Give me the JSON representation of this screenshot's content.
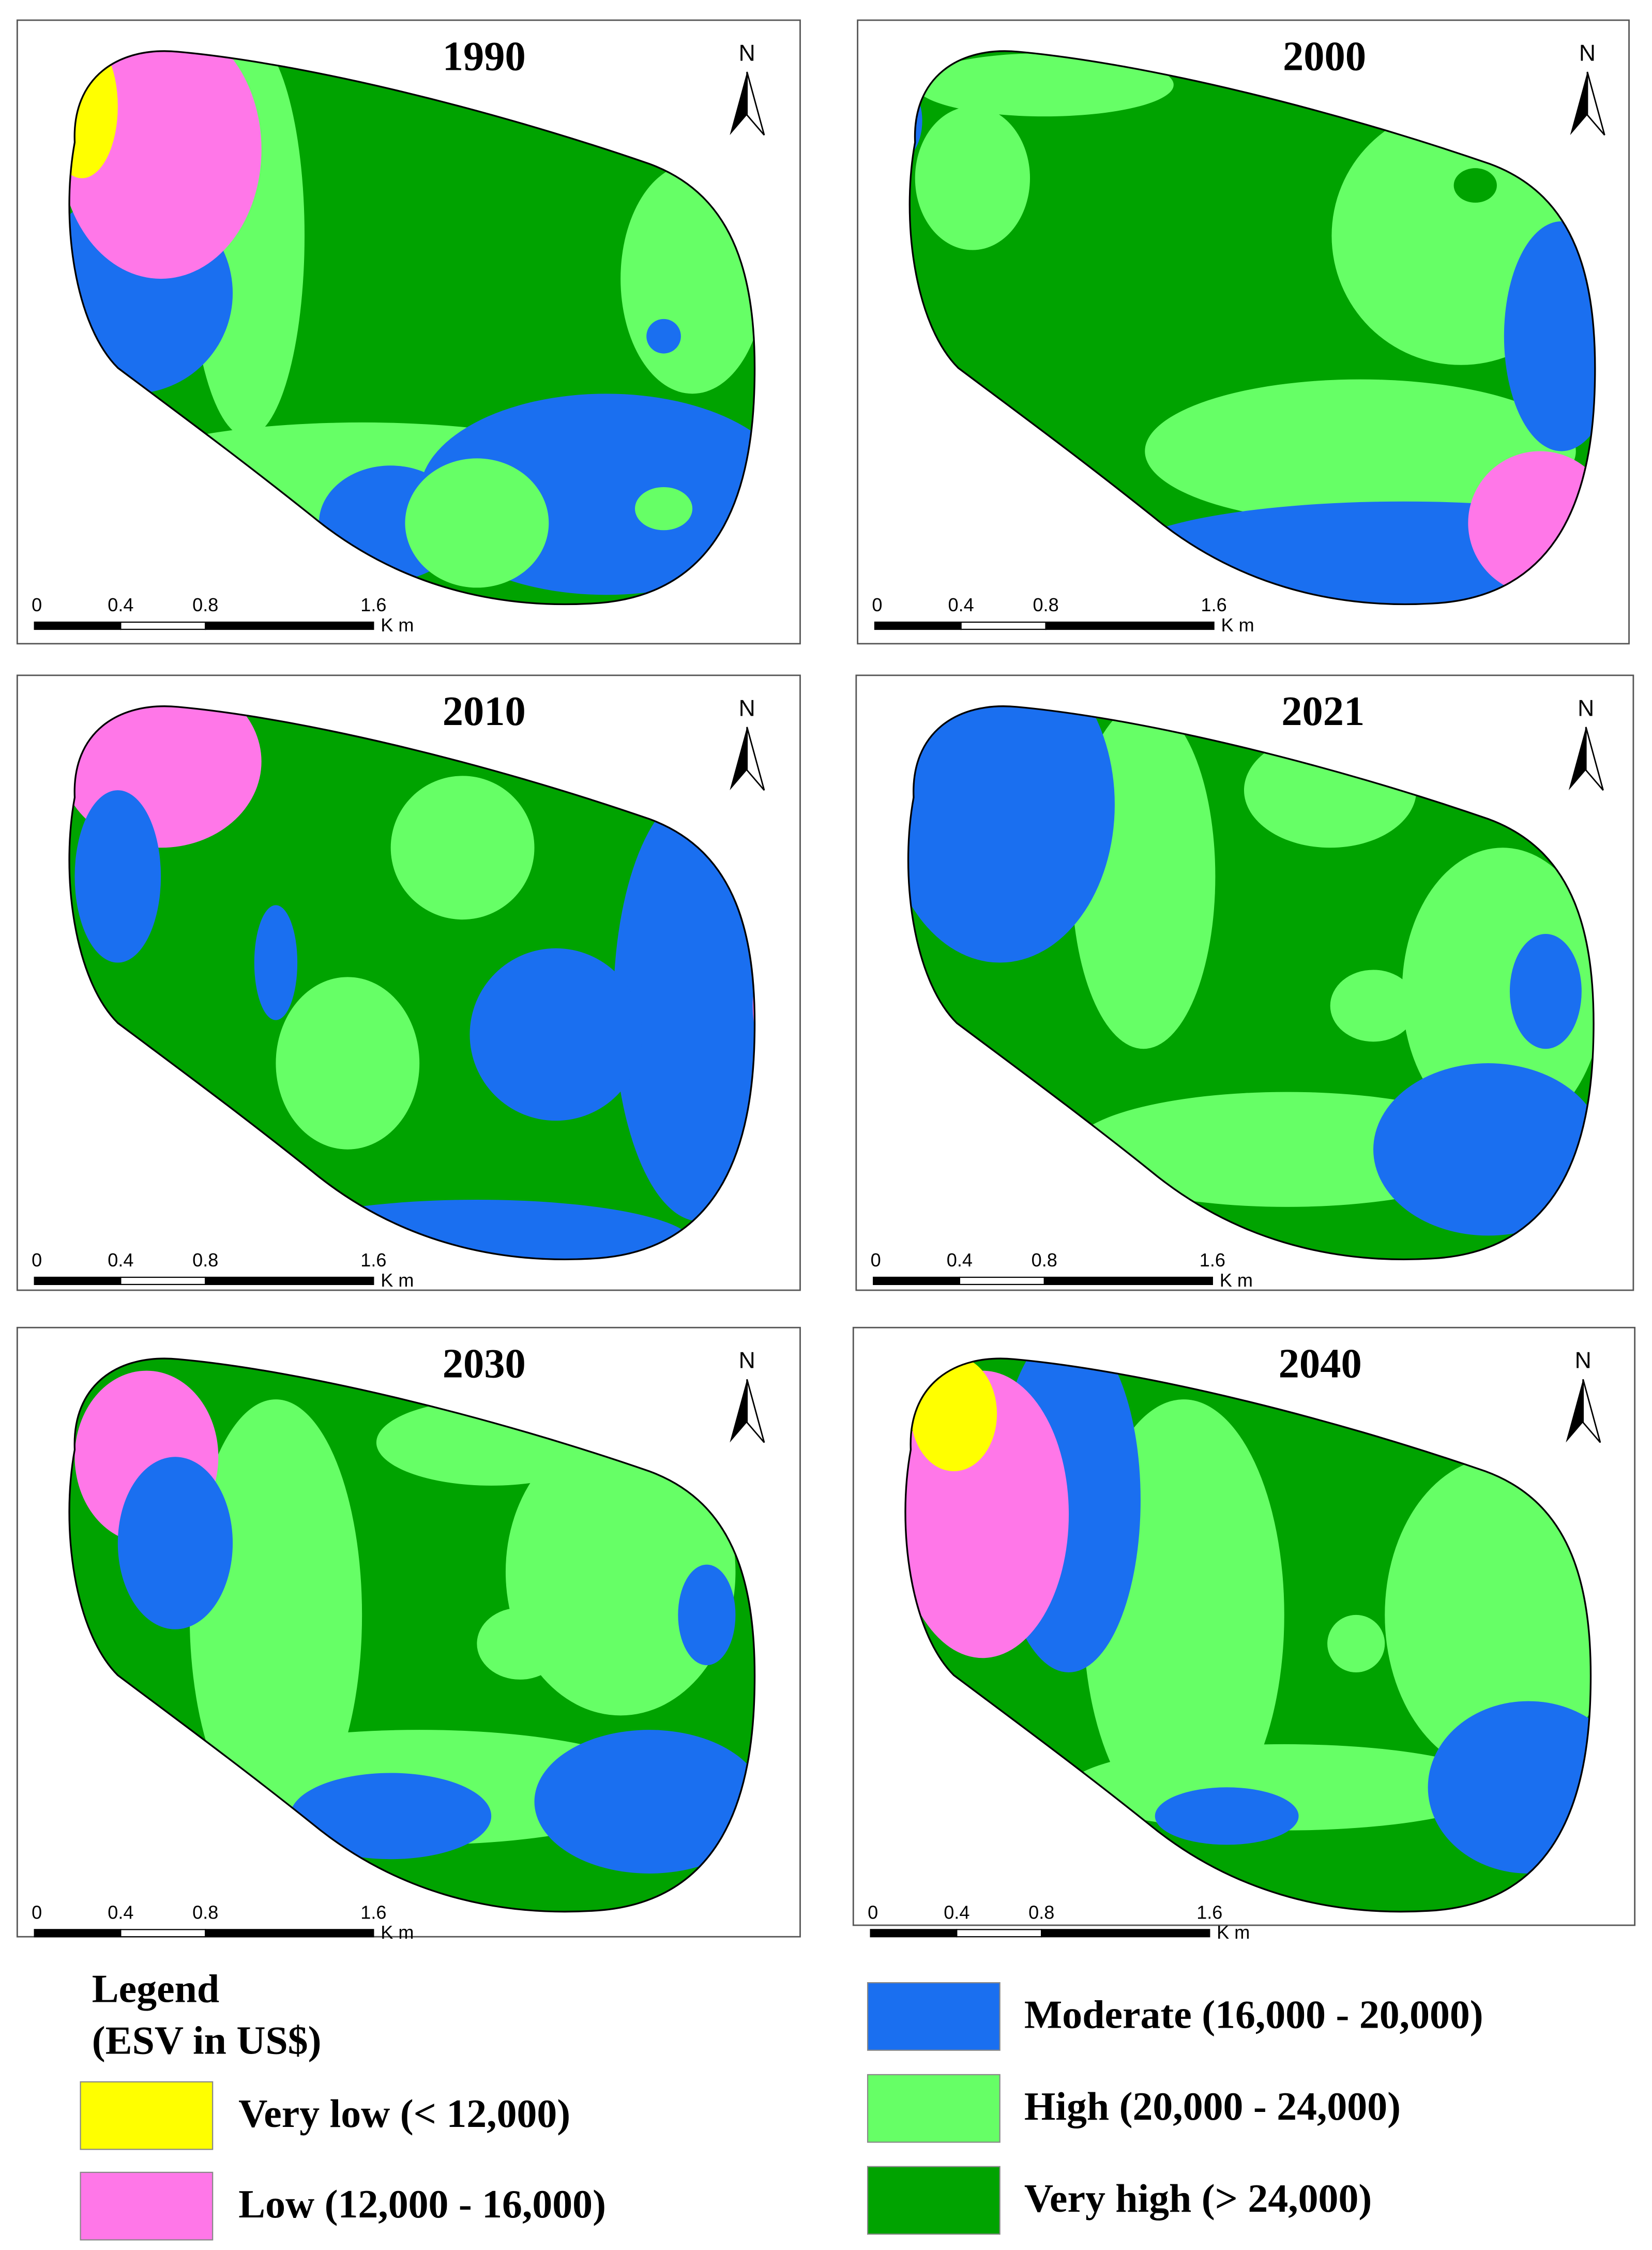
{
  "panels": [
    {
      "title": "1990"
    },
    {
      "title": "2000"
    },
    {
      "title": "2010"
    },
    {
      "title": "2021"
    },
    {
      "title": "2030"
    },
    {
      "title": "2040"
    }
  ],
  "north_label": "N",
  "scale_bar": {
    "labels": [
      "0",
      "0.4",
      "0.8",
      "1.6"
    ],
    "unit": "K m"
  },
  "legend": {
    "title": "Legend",
    "subtitle": "(ESV in US$)",
    "items": [
      {
        "label": "Very low (< 12,000)",
        "color": "#ffff00"
      },
      {
        "label": "Low (12,000 - 16,000)",
        "color": "#ff77e8"
      },
      {
        "label": "Moderate (16,000 - 20,000)",
        "color": "#1a6ff0"
      },
      {
        "label": "High (20,000 - 24,000)",
        "color": "#66ff66"
      },
      {
        "label": "Very high (> 24,000)",
        "color": "#00a300"
      }
    ]
  }
}
